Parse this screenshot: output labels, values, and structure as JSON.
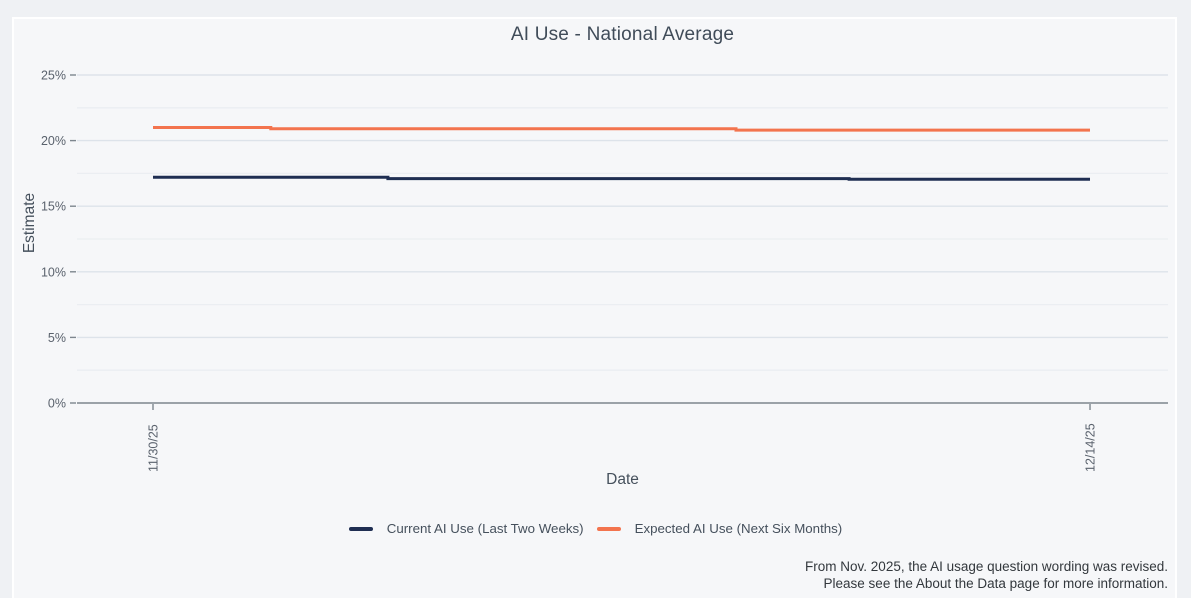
{
  "chart_data": {
    "type": "line",
    "title": "AI Use - National Average",
    "xlabel": "Date",
    "ylabel": "Estimate",
    "x_start_date": "11/30/25",
    "x_end_date": "12/14/25",
    "x_range_days": 14,
    "x_ticks": [
      {
        "label": "11/30/25",
        "day": 0
      },
      {
        "label": "12/14/25",
        "day": 14
      }
    ],
    "y_ticks": [
      {
        "label": "0%",
        "value": 0
      },
      {
        "label": "5%",
        "value": 5
      },
      {
        "label": "10%",
        "value": 10
      },
      {
        "label": "15%",
        "value": 15
      },
      {
        "label": "20%",
        "value": 20
      },
      {
        "label": "25%",
        "value": 25
      }
    ],
    "y_minor_gridlines": [
      2.5,
      7.5,
      12.5,
      17.5,
      22.5
    ],
    "ylim": [
      0,
      26.3
    ],
    "grid": true,
    "legend_position": "bottom",
    "colors": {
      "current_series": "#1f2e52",
      "expected_series": "#f3744e",
      "major_gridline": "#dde3ea",
      "minor_gridline": "#ebeef2",
      "axis_line": "#7d868e",
      "tick_text": "#5a626d"
    },
    "series": [
      {
        "id": "current-ai-use",
        "name": "Current AI Use (Last Two Weeks)",
        "color": "#1f2e52",
        "points": [
          {
            "date": "11/30/25",
            "d": 0,
            "value": 17.2
          },
          {
            "date": "12/03/25",
            "d": 3.51,
            "value": 17.2
          },
          {
            "date": "12/03/25",
            "d": 3.51,
            "value": 17.1
          },
          {
            "date": "12/10/25",
            "d": 10.4,
            "value": 17.1
          },
          {
            "date": "12/10/25",
            "d": 10.4,
            "value": 17.05
          },
          {
            "date": "12/14/25",
            "d": 14,
            "value": 17.05
          }
        ]
      },
      {
        "id": "expected-ai-use",
        "name": "Expected AI Use (Next Six Months)",
        "color": "#f3744e",
        "points": [
          {
            "date": "11/30/25",
            "d": 0,
            "value": 21.0
          },
          {
            "date": "12/02/25",
            "d": 1.76,
            "value": 21.0
          },
          {
            "date": "12/02/25",
            "d": 1.76,
            "value": 20.9
          },
          {
            "date": "12/09/25",
            "d": 8.71,
            "value": 20.9
          },
          {
            "date": "12/09/25",
            "d": 8.71,
            "value": 20.8
          },
          {
            "date": "12/14/25",
            "d": 14,
            "value": 20.8
          }
        ]
      }
    ]
  },
  "footnote": {
    "line1": "From Nov. 2025, the AI usage question wording was revised.",
    "line2": "Please see the About the Data page for more information."
  }
}
